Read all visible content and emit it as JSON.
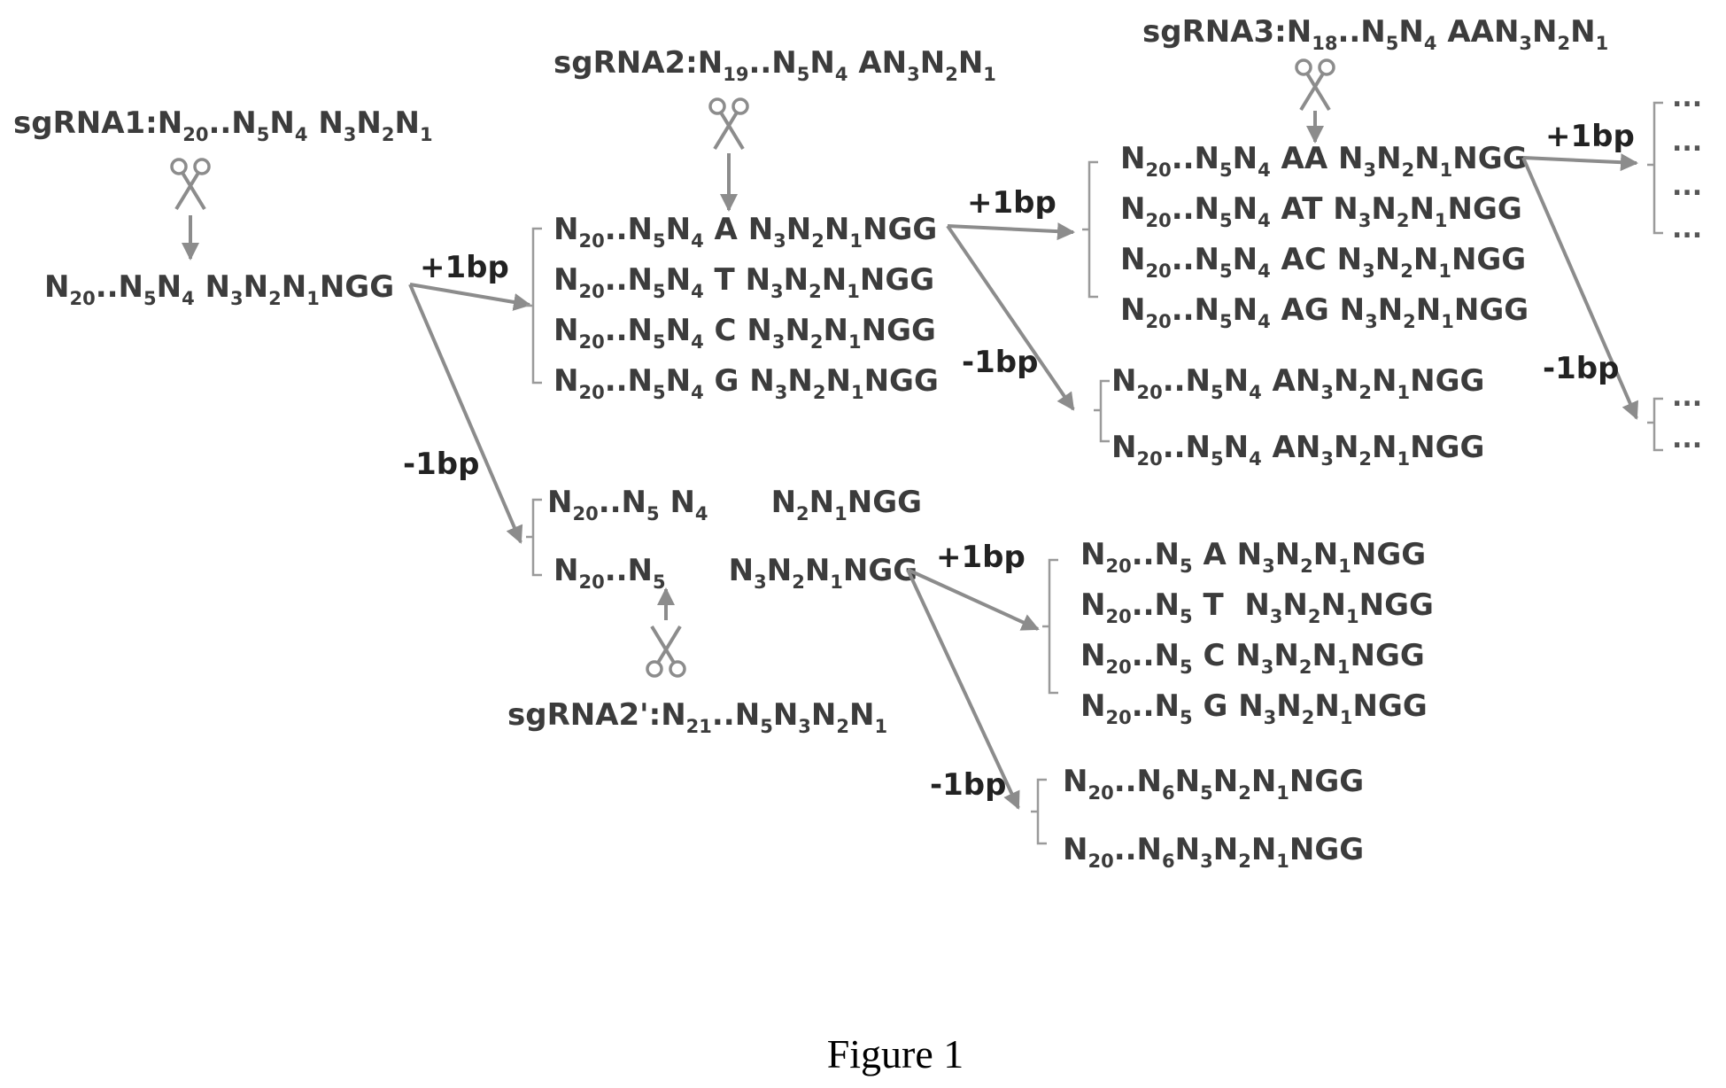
{
  "figure": {
    "caption": "Figure 1",
    "colors": {
      "text": "#3c3c3c",
      "arrow": "#8c8c8c",
      "bracket": "#9a9a9a"
    },
    "icons": [
      "scissors-icon"
    ],
    "sgrnas": {
      "sgrna1": [
        [
          "sgRNA1:N",
          ""
        ],
        [
          "20",
          "s"
        ],
        [
          "..N",
          ""
        ],
        [
          "5",
          "s"
        ],
        [
          "N",
          ""
        ],
        [
          "4",
          "s"
        ],
        [
          " N",
          ""
        ],
        [
          "3",
          "s"
        ],
        [
          "N",
          ""
        ],
        [
          "2",
          "s"
        ],
        [
          "N",
          ""
        ],
        [
          "1",
          "s"
        ]
      ],
      "sgrna2": [
        [
          "sgRNA2:N",
          ""
        ],
        [
          "19",
          "s"
        ],
        [
          "..N",
          ""
        ],
        [
          "5",
          "s"
        ],
        [
          "N",
          ""
        ],
        [
          "4",
          "s"
        ],
        [
          " AN",
          ""
        ],
        [
          "3",
          "s"
        ],
        [
          "N",
          ""
        ],
        [
          "2",
          "s"
        ],
        [
          "N",
          ""
        ],
        [
          "1",
          "s"
        ]
      ],
      "sgrna3": [
        [
          "sgRNA3:N",
          ""
        ],
        [
          "18",
          "s"
        ],
        [
          "..N",
          ""
        ],
        [
          "5",
          "s"
        ],
        [
          "N",
          ""
        ],
        [
          "4",
          "s"
        ],
        [
          " AAN",
          ""
        ],
        [
          "3",
          "s"
        ],
        [
          "N",
          ""
        ],
        [
          "2",
          "s"
        ],
        [
          "N",
          ""
        ],
        [
          "1",
          "s"
        ]
      ],
      "sgrna2p": [
        [
          "sgRNA2':N",
          ""
        ],
        [
          "21",
          "s"
        ],
        [
          "..N",
          ""
        ],
        [
          "5",
          "s"
        ],
        [
          "N",
          ""
        ],
        [
          "3",
          "s"
        ],
        [
          "N",
          ""
        ],
        [
          "2",
          "s"
        ],
        [
          "N",
          ""
        ],
        [
          "1",
          "s"
        ]
      ]
    },
    "shift_labels": {
      "a_plus": "+1bp",
      "a_minus": "-1bp",
      "b_plus": "+1bp",
      "b_minus": "-1bp",
      "c_plus": "+1bp",
      "c_minus": "-1bp",
      "d_plus": "+1bp",
      "d_minus": "-1bp"
    },
    "sequences": {
      "root": [
        [
          "N",
          ""
        ],
        [
          "20",
          "s"
        ],
        [
          "..N",
          ""
        ],
        [
          "5",
          "s"
        ],
        [
          "N",
          ""
        ],
        [
          "4",
          "s"
        ],
        [
          " N",
          ""
        ],
        [
          "3",
          "s"
        ],
        [
          "N",
          ""
        ],
        [
          "2",
          "s"
        ],
        [
          "N",
          ""
        ],
        [
          "1",
          "s"
        ],
        [
          "NGG",
          ""
        ]
      ],
      "plus1": [
        [
          [
            "N",
            ""
          ],
          [
            "20",
            "s"
          ],
          [
            "..N",
            ""
          ],
          [
            "5",
            "s"
          ],
          [
            "N",
            ""
          ],
          [
            "4",
            "s"
          ],
          [
            " A N",
            ""
          ],
          [
            "3",
            "s"
          ],
          [
            "N",
            ""
          ],
          [
            "2",
            "s"
          ],
          [
            "N",
            ""
          ],
          [
            "1",
            "s"
          ],
          [
            "NGG",
            ""
          ]
        ],
        [
          [
            "N",
            ""
          ],
          [
            "20",
            "s"
          ],
          [
            "..N",
            ""
          ],
          [
            "5",
            "s"
          ],
          [
            "N",
            ""
          ],
          [
            "4",
            "s"
          ],
          [
            " T N",
            ""
          ],
          [
            "3",
            "s"
          ],
          [
            "N",
            ""
          ],
          [
            "2",
            "s"
          ],
          [
            "N",
            ""
          ],
          [
            "1",
            "s"
          ],
          [
            "NGG",
            ""
          ]
        ],
        [
          [
            "N",
            ""
          ],
          [
            "20",
            "s"
          ],
          [
            "..N",
            ""
          ],
          [
            "5",
            "s"
          ],
          [
            "N",
            ""
          ],
          [
            "4",
            "s"
          ],
          [
            " C N",
            ""
          ],
          [
            "3",
            "s"
          ],
          [
            "N",
            ""
          ],
          [
            "2",
            "s"
          ],
          [
            "N",
            ""
          ],
          [
            "1",
            "s"
          ],
          [
            "NGG",
            ""
          ]
        ],
        [
          [
            "N",
            ""
          ],
          [
            "20",
            "s"
          ],
          [
            "..N",
            ""
          ],
          [
            "5",
            "s"
          ],
          [
            "N",
            ""
          ],
          [
            "4",
            "s"
          ],
          [
            " G N",
            ""
          ],
          [
            "3",
            "s"
          ],
          [
            "N",
            ""
          ],
          [
            "2",
            "s"
          ],
          [
            "N",
            ""
          ],
          [
            "1",
            "s"
          ],
          [
            "NGG",
            ""
          ]
        ]
      ],
      "minus1": [
        [
          [
            "N",
            ""
          ],
          [
            "20",
            "s"
          ],
          [
            "..N",
            ""
          ],
          [
            "5",
            "s"
          ],
          [
            " N",
            ""
          ],
          [
            "4",
            "s"
          ],
          [
            "      N",
            ""
          ],
          [
            "2",
            "s"
          ],
          [
            "N",
            ""
          ],
          [
            "1",
            "s"
          ],
          [
            "NGG",
            ""
          ]
        ],
        [
          [
            "N",
            ""
          ],
          [
            "20",
            "s"
          ],
          [
            "..N",
            ""
          ],
          [
            "5",
            "s"
          ],
          [
            "      N",
            ""
          ],
          [
            "3",
            "s"
          ],
          [
            "N",
            ""
          ],
          [
            "2",
            "s"
          ],
          [
            "N",
            ""
          ],
          [
            "1",
            "s"
          ],
          [
            "NGG",
            ""
          ]
        ]
      ],
      "plus1_plus1": [
        [
          [
            "N",
            ""
          ],
          [
            "20",
            "s"
          ],
          [
            "..N",
            ""
          ],
          [
            "5",
            "s"
          ],
          [
            "N",
            ""
          ],
          [
            "4",
            "s"
          ],
          [
            " AA N",
            ""
          ],
          [
            "3",
            "s"
          ],
          [
            "N",
            ""
          ],
          [
            "2",
            "s"
          ],
          [
            "N",
            ""
          ],
          [
            "1",
            "s"
          ],
          [
            "NGG",
            ""
          ]
        ],
        [
          [
            "N",
            ""
          ],
          [
            "20",
            "s"
          ],
          [
            "..N",
            ""
          ],
          [
            "5",
            "s"
          ],
          [
            "N",
            ""
          ],
          [
            "4",
            "s"
          ],
          [
            " AT N",
            ""
          ],
          [
            "3",
            "s"
          ],
          [
            "N",
            ""
          ],
          [
            "2",
            "s"
          ],
          [
            "N",
            ""
          ],
          [
            "1",
            "s"
          ],
          [
            "NGG",
            ""
          ]
        ],
        [
          [
            "N",
            ""
          ],
          [
            "20",
            "s"
          ],
          [
            "..N",
            ""
          ],
          [
            "5",
            "s"
          ],
          [
            "N",
            ""
          ],
          [
            "4",
            "s"
          ],
          [
            " AC N",
            ""
          ],
          [
            "3",
            "s"
          ],
          [
            "N",
            ""
          ],
          [
            "2",
            "s"
          ],
          [
            "N",
            ""
          ],
          [
            "1",
            "s"
          ],
          [
            "NGG",
            ""
          ]
        ],
        [
          [
            "N",
            ""
          ],
          [
            "20",
            "s"
          ],
          [
            "..N",
            ""
          ],
          [
            "5",
            "s"
          ],
          [
            "N",
            ""
          ],
          [
            "4",
            "s"
          ],
          [
            " AG N",
            ""
          ],
          [
            "3",
            "s"
          ],
          [
            "N",
            ""
          ],
          [
            "2",
            "s"
          ],
          [
            "N",
            ""
          ],
          [
            "1",
            "s"
          ],
          [
            "NGG",
            ""
          ]
        ]
      ],
      "plus1_minus1": [
        [
          [
            "N",
            ""
          ],
          [
            "20",
            "s"
          ],
          [
            "..N",
            ""
          ],
          [
            "5",
            "s"
          ],
          [
            "N",
            ""
          ],
          [
            "4",
            "s"
          ],
          [
            " AN",
            ""
          ],
          [
            "3",
            "s"
          ],
          [
            "N",
            ""
          ],
          [
            "2",
            "s"
          ],
          [
            "N",
            ""
          ],
          [
            "1",
            "s"
          ],
          [
            "NGG",
            ""
          ]
        ],
        [
          [
            "N",
            ""
          ],
          [
            "20",
            "s"
          ],
          [
            "..N",
            ""
          ],
          [
            "5",
            "s"
          ],
          [
            "N",
            ""
          ],
          [
            "4",
            "s"
          ],
          [
            " AN",
            ""
          ],
          [
            "3",
            "s"
          ],
          [
            "N",
            ""
          ],
          [
            "2",
            "s"
          ],
          [
            "N",
            ""
          ],
          [
            "1",
            "s"
          ],
          [
            "NGG",
            ""
          ]
        ]
      ],
      "minus1_plus1": [
        [
          [
            "N",
            ""
          ],
          [
            "20",
            "s"
          ],
          [
            "..N",
            ""
          ],
          [
            "5",
            "s"
          ],
          [
            " A N",
            ""
          ],
          [
            "3",
            "s"
          ],
          [
            "N",
            ""
          ],
          [
            "2",
            "s"
          ],
          [
            "N",
            ""
          ],
          [
            "1",
            "s"
          ],
          [
            "NGG",
            ""
          ]
        ],
        [
          [
            "N",
            ""
          ],
          [
            "20",
            "s"
          ],
          [
            "..N",
            ""
          ],
          [
            "5",
            "s"
          ],
          [
            " T  N",
            ""
          ],
          [
            "3",
            "s"
          ],
          [
            "N",
            ""
          ],
          [
            "2",
            "s"
          ],
          [
            "N",
            ""
          ],
          [
            "1",
            "s"
          ],
          [
            "NGG",
            ""
          ]
        ],
        [
          [
            "N",
            ""
          ],
          [
            "20",
            "s"
          ],
          [
            "..N",
            ""
          ],
          [
            "5",
            "s"
          ],
          [
            " C N",
            ""
          ],
          [
            "3",
            "s"
          ],
          [
            "N",
            ""
          ],
          [
            "2",
            "s"
          ],
          [
            "N",
            ""
          ],
          [
            "1",
            "s"
          ],
          [
            "NGG",
            ""
          ]
        ],
        [
          [
            "N",
            ""
          ],
          [
            "20",
            "s"
          ],
          [
            "..N",
            ""
          ],
          [
            "5",
            "s"
          ],
          [
            " G N",
            ""
          ],
          [
            "3",
            "s"
          ],
          [
            "N",
            ""
          ],
          [
            "2",
            "s"
          ],
          [
            "N",
            ""
          ],
          [
            "1",
            "s"
          ],
          [
            "NGG",
            ""
          ]
        ]
      ],
      "minus1_minus1": [
        [
          [
            "N",
            ""
          ],
          [
            "20",
            "s"
          ],
          [
            "..N",
            ""
          ],
          [
            "6",
            "s"
          ],
          [
            "N",
            ""
          ],
          [
            "5",
            "s"
          ],
          [
            "N",
            ""
          ],
          [
            "2",
            "s"
          ],
          [
            "N",
            ""
          ],
          [
            "1",
            "s"
          ],
          [
            "NGG",
            ""
          ]
        ],
        [
          [
            "N",
            ""
          ],
          [
            "20",
            "s"
          ],
          [
            "..N",
            ""
          ],
          [
            "6",
            "s"
          ],
          [
            "N",
            ""
          ],
          [
            "3",
            "s"
          ],
          [
            "N",
            ""
          ],
          [
            "2",
            "s"
          ],
          [
            "N",
            ""
          ],
          [
            "1",
            "s"
          ],
          [
            "NGG",
            ""
          ]
        ]
      ]
    },
    "ellipsis": "..."
  }
}
